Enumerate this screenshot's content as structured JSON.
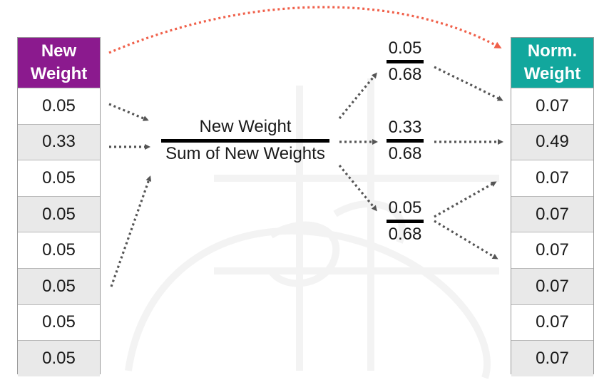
{
  "left_column": {
    "header_line1": "New",
    "header_line2": "Weight",
    "header_color": "#8b1a8e",
    "values": [
      "0.05",
      "0.33",
      "0.05",
      "0.05",
      "0.05",
      "0.05",
      "0.05",
      "0.05"
    ]
  },
  "formula": {
    "numerator": "New Weight",
    "denominator": "Sum of New Weights"
  },
  "fractions": [
    {
      "numerator": "0.05",
      "denominator": "0.68"
    },
    {
      "numerator": "0.33",
      "denominator": "0.68"
    },
    {
      "numerator": "0.05",
      "denominator": "0.68"
    }
  ],
  "right_column": {
    "header_line1": "Norm.",
    "header_line2": "Weight",
    "header_color": "#12a79d",
    "values": [
      "0.07",
      "0.49",
      "0.07",
      "0.07",
      "0.07",
      "0.07",
      "0.07",
      "0.07"
    ]
  },
  "colors": {
    "arrow_gray": "#555555",
    "arrow_red": "#f0604a"
  }
}
